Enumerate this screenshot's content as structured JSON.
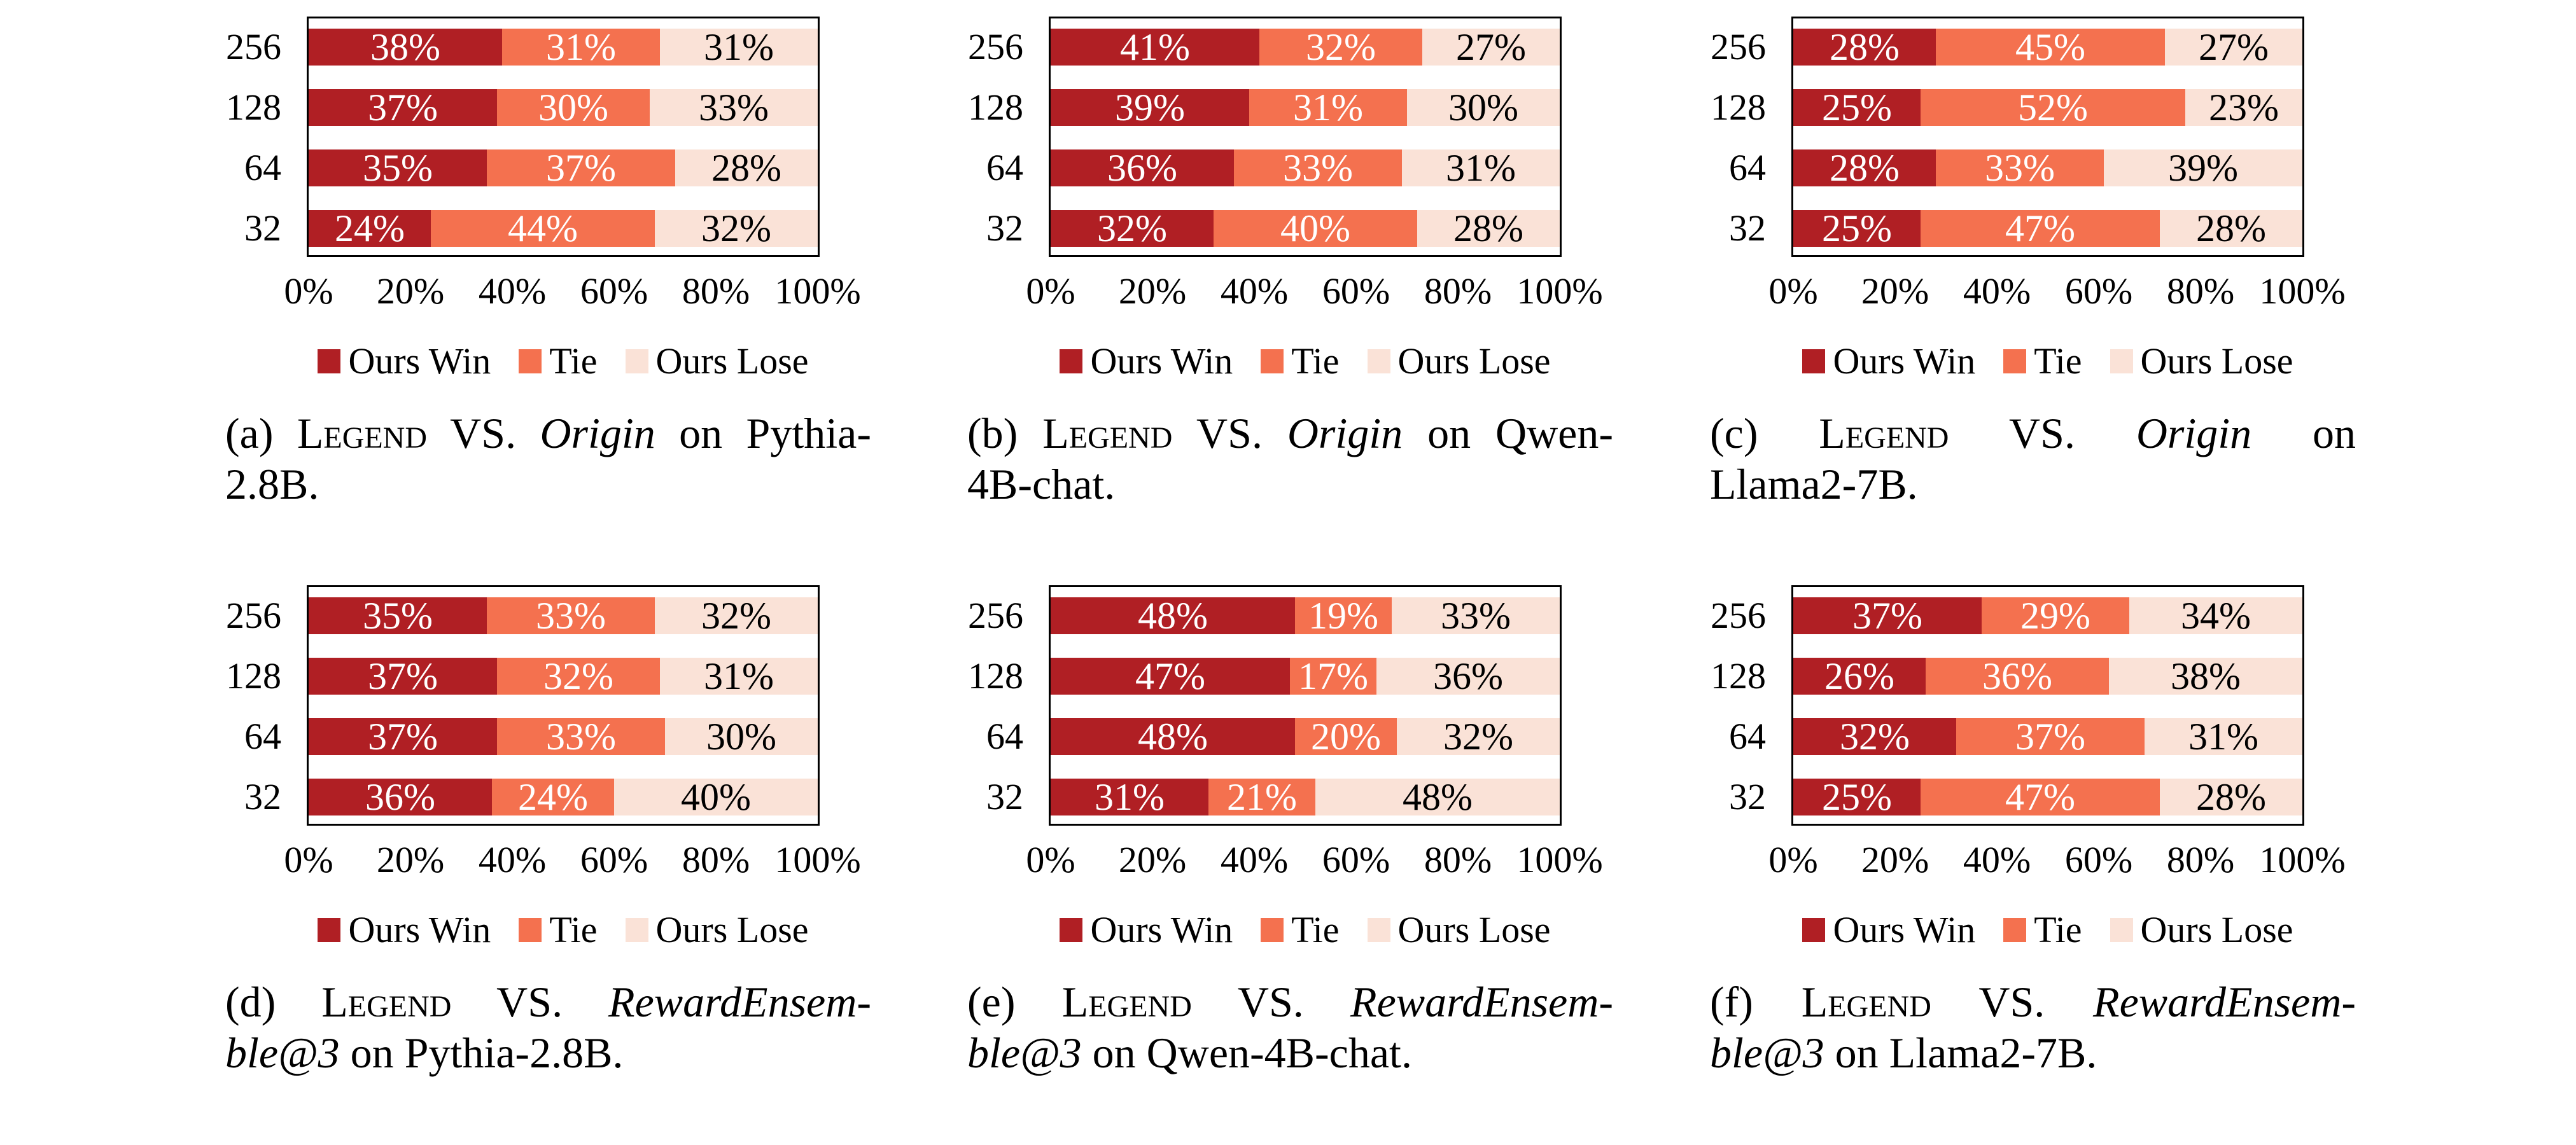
{
  "colors": {
    "ours_win": "#B01F24",
    "tie": "#F4714F",
    "ours_lose": "#FAE2D7",
    "frame": "#000000",
    "label_on_dark": "#FFFFFF",
    "label_on_light": "#000000",
    "background": "#FFFFFF"
  },
  "legend_items": [
    {
      "label": "Ours Win",
      "color_key": "ours_win",
      "label_color_in_bar": "#FFFFFF"
    },
    {
      "label": "Tie",
      "color_key": "tie",
      "label_color_in_bar": "#FFFFFF"
    },
    {
      "label": "Ours Lose",
      "color_key": "ours_lose",
      "label_color_in_bar": "#000000"
    }
  ],
  "chart_data": [
    {
      "id": "a",
      "type": "bar",
      "stacked": true,
      "orientation": "horizontal",
      "categories": [
        "256",
        "128",
        "64",
        "32"
      ],
      "series": [
        {
          "name": "Ours Win",
          "values": [
            38,
            37,
            35,
            24
          ]
        },
        {
          "name": "Tie",
          "values": [
            31,
            30,
            37,
            44
          ]
        },
        {
          "name": "Ours Lose",
          "values": [
            31,
            33,
            28,
            32
          ]
        }
      ],
      "value_labels": [
        [
          "38%",
          "31%",
          "31%"
        ],
        [
          "37%",
          "30%",
          "33%"
        ],
        [
          "35%",
          "37%",
          "28%"
        ],
        [
          "24%",
          "44%",
          "32%"
        ]
      ],
      "xlim": [
        0,
        100
      ],
      "xticks": [
        "0%",
        "20%",
        "40%",
        "60%",
        "80%",
        "100%"
      ],
      "grid": false,
      "legend": [
        "Ours Win",
        "Tie",
        "Ours Lose"
      ],
      "legend_position": "below",
      "caption_text": "(a) Legend VS. Origin on Pythia-2.8B.",
      "caption_lines": [
        [
          {
            "t": "(a) "
          },
          {
            "t": "Legend",
            "sc": true
          },
          {
            "t": " VS. "
          },
          {
            "t": "Origin",
            "it": true
          },
          {
            "t": " on Pythia-"
          }
        ],
        [
          {
            "t": "2.8B."
          }
        ]
      ]
    },
    {
      "id": "b",
      "type": "bar",
      "stacked": true,
      "orientation": "horizontal",
      "categories": [
        "256",
        "128",
        "64",
        "32"
      ],
      "series": [
        {
          "name": "Ours Win",
          "values": [
            41,
            39,
            36,
            32
          ]
        },
        {
          "name": "Tie",
          "values": [
            32,
            31,
            33,
            40
          ]
        },
        {
          "name": "Ours Lose",
          "values": [
            27,
            30,
            31,
            28
          ]
        }
      ],
      "value_labels": [
        [
          "41%",
          "32%",
          "27%"
        ],
        [
          "39%",
          "31%",
          "30%"
        ],
        [
          "36%",
          "33%",
          "31%"
        ],
        [
          "32%",
          "40%",
          "28%"
        ]
      ],
      "xlim": [
        0,
        100
      ],
      "xticks": [
        "0%",
        "20%",
        "40%",
        "60%",
        "80%",
        "100%"
      ],
      "grid": false,
      "legend": [
        "Ours Win",
        "Tie",
        "Ours Lose"
      ],
      "legend_position": "below",
      "caption_text": "(b) Legend VS. Origin on Qwen-4B-chat.",
      "caption_lines": [
        [
          {
            "t": "(b) "
          },
          {
            "t": "Legend",
            "sc": true
          },
          {
            "t": " VS. "
          },
          {
            "t": "Origin",
            "it": true
          },
          {
            "t": " on Qwen-"
          }
        ],
        [
          {
            "t": "4B-chat."
          }
        ]
      ]
    },
    {
      "id": "c",
      "type": "bar",
      "stacked": true,
      "orientation": "horizontal",
      "categories": [
        "256",
        "128",
        "64",
        "32"
      ],
      "series": [
        {
          "name": "Ours Win",
          "values": [
            28,
            25,
            28,
            25
          ]
        },
        {
          "name": "Tie",
          "values": [
            45,
            52,
            33,
            47
          ]
        },
        {
          "name": "Ours Lose",
          "values": [
            27,
            23,
            39,
            28
          ]
        }
      ],
      "value_labels": [
        [
          "28%",
          "45%",
          "27%"
        ],
        [
          "25%",
          "52%",
          "23%"
        ],
        [
          "28%",
          "33%",
          "39%"
        ],
        [
          "25%",
          "47%",
          "28%"
        ]
      ],
      "xlim": [
        0,
        100
      ],
      "xticks": [
        "0%",
        "20%",
        "40%",
        "60%",
        "80%",
        "100%"
      ],
      "grid": false,
      "legend": [
        "Ours Win",
        "Tie",
        "Ours Lose"
      ],
      "legend_position": "below",
      "caption_text": "(c) Legend VS. Origin on Llama2-7B.",
      "caption_lines": [
        [
          {
            "t": "(c) "
          },
          {
            "t": "Legend",
            "sc": true
          },
          {
            "t": " VS. "
          },
          {
            "t": "Origin",
            "it": true
          },
          {
            "t": " on"
          }
        ],
        [
          {
            "t": "Llama2-7B."
          }
        ]
      ]
    },
    {
      "id": "d",
      "type": "bar",
      "stacked": true,
      "orientation": "horizontal",
      "categories": [
        "256",
        "128",
        "64",
        "32"
      ],
      "series": [
        {
          "name": "Ours Win",
          "values": [
            35,
            37,
            37,
            36
          ]
        },
        {
          "name": "Tie",
          "values": [
            33,
            32,
            33,
            24
          ]
        },
        {
          "name": "Ours Lose",
          "values": [
            32,
            31,
            30,
            40
          ]
        }
      ],
      "value_labels": [
        [
          "35%",
          "33%",
          "32%"
        ],
        [
          "37%",
          "32%",
          "31%"
        ],
        [
          "37%",
          "33%",
          "30%"
        ],
        [
          "36%",
          "24%",
          "40%"
        ]
      ],
      "xlim": [
        0,
        100
      ],
      "xticks": [
        "0%",
        "20%",
        "40%",
        "60%",
        "80%",
        "100%"
      ],
      "grid": false,
      "legend": [
        "Ours Win",
        "Tie",
        "Ours Lose"
      ],
      "legend_position": "below",
      "caption_text": "(d) Legend VS. RewardEnsemble@3 on Pythia-2.8B.",
      "caption_lines": [
        [
          {
            "t": "(d) "
          },
          {
            "t": "Legend",
            "sc": true
          },
          {
            "t": " VS. "
          },
          {
            "t": "RewardEnsem-",
            "it": true
          }
        ],
        [
          {
            "t": "ble@3",
            "it": true
          },
          {
            "t": " on Pythia-2.8B."
          }
        ]
      ]
    },
    {
      "id": "e",
      "type": "bar",
      "stacked": true,
      "orientation": "horizontal",
      "categories": [
        "256",
        "128",
        "64",
        "32"
      ],
      "series": [
        {
          "name": "Ours Win",
          "values": [
            48,
            47,
            48,
            31
          ]
        },
        {
          "name": "Tie",
          "values": [
            19,
            17,
            20,
            21
          ]
        },
        {
          "name": "Ours Lose",
          "values": [
            33,
            36,
            32,
            48
          ]
        }
      ],
      "value_labels": [
        [
          "48%",
          "19%",
          "33%"
        ],
        [
          "47%",
          "17%",
          "36%"
        ],
        [
          "48%",
          "20%",
          "32%"
        ],
        [
          "31%",
          "21%",
          "48%"
        ]
      ],
      "xlim": [
        0,
        100
      ],
      "xticks": [
        "0%",
        "20%",
        "40%",
        "60%",
        "80%",
        "100%"
      ],
      "grid": false,
      "legend": [
        "Ours Win",
        "Tie",
        "Ours Lose"
      ],
      "legend_position": "below",
      "caption_text": "(e) Legend VS. RewardEnsemble@3 on Qwen-4B-chat.",
      "caption_lines": [
        [
          {
            "t": "(e) "
          },
          {
            "t": "Legend",
            "sc": true
          },
          {
            "t": " VS. "
          },
          {
            "t": "RewardEnsem-",
            "it": true
          }
        ],
        [
          {
            "t": "ble@3",
            "it": true
          },
          {
            "t": " on Qwen-4B-chat."
          }
        ]
      ]
    },
    {
      "id": "f",
      "type": "bar",
      "stacked": true,
      "orientation": "horizontal",
      "categories": [
        "256",
        "128",
        "64",
        "32"
      ],
      "series": [
        {
          "name": "Ours Win",
          "values": [
            37,
            26,
            32,
            25
          ]
        },
        {
          "name": "Tie",
          "values": [
            29,
            36,
            37,
            47
          ]
        },
        {
          "name": "Ours Lose",
          "values": [
            34,
            38,
            31,
            28
          ]
        }
      ],
      "value_labels": [
        [
          "37%",
          "29%",
          "34%"
        ],
        [
          "26%",
          "36%",
          "38%"
        ],
        [
          "32%",
          "37%",
          "31%"
        ],
        [
          "25%",
          "47%",
          "28%"
        ]
      ],
      "xlim": [
        0,
        100
      ],
      "xticks": [
        "0%",
        "20%",
        "40%",
        "60%",
        "80%",
        "100%"
      ],
      "grid": false,
      "legend": [
        "Ours Win",
        "Tie",
        "Ours Lose"
      ],
      "legend_position": "below",
      "caption_text": "(f) Legend VS. RewardEnsemble@3 on Llama2-7B.",
      "caption_lines": [
        [
          {
            "t": "(f) "
          },
          {
            "t": "Legend",
            "sc": true
          },
          {
            "t": " VS. "
          },
          {
            "t": "RewardEnsem-",
            "it": true
          }
        ],
        [
          {
            "t": "ble@3",
            "it": true
          },
          {
            "t": " on Llama2-7B."
          }
        ]
      ]
    }
  ]
}
